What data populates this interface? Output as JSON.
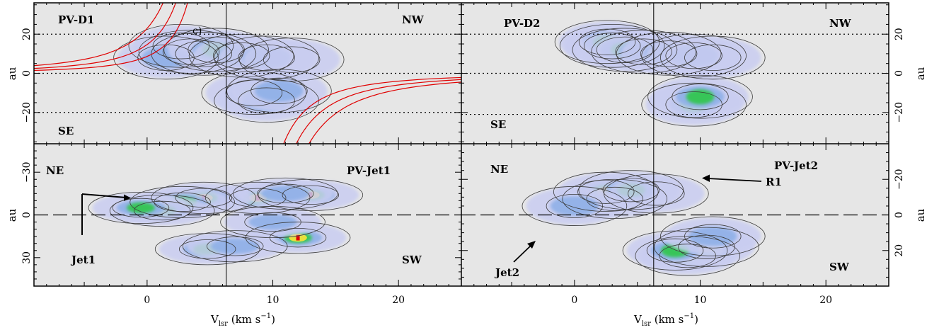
{
  "chart_data": [
    {
      "type": "heatmap",
      "panel_id": "top-left",
      "title": "PV-D1",
      "corner_labels": [
        "NW",
        "SE"
      ],
      "annotations": [
        "c)"
      ],
      "xlabel": "",
      "ylabel": "au",
      "xlim": [
        -9,
        25
      ],
      "ylim": [
        36,
        -36
      ],
      "x_ticks": [
        0,
        10,
        20
      ],
      "y_ticks": [
        -20,
        0,
        20
      ],
      "y_tick_labels": [
        "−20",
        "0",
        "20"
      ],
      "dotted_lines_y": [
        -20,
        0,
        20
      ],
      "vline_x": 6.3,
      "emission_blobs": [
        {
          "x": 2.7,
          "y": 14,
          "i": 1.0
        },
        {
          "x": 3.5,
          "y": 11,
          "i": 0.7
        },
        {
          "x": 4.5,
          "y": 10,
          "i": 0.55
        },
        {
          "x": 1.5,
          "y": 8,
          "i": 0.35
        },
        {
          "x": 5.5,
          "y": 12,
          "i": 0.45
        },
        {
          "x": 7.5,
          "y": 9,
          "i": 0.35
        },
        {
          "x": 9.5,
          "y": 8,
          "i": 0.35
        },
        {
          "x": 11.5,
          "y": 7,
          "i": 0.3
        },
        {
          "x": 8.5,
          "y": -10,
          "i": 0.45
        },
        {
          "x": 9.5,
          "y": -14,
          "i": 0.4
        },
        {
          "x": 10.5,
          "y": -9,
          "i": 0.35
        }
      ],
      "red_curves": [
        {
          "side": "lower-left",
          "offsets_x": [
            4.6,
            6.0,
            7.5
          ]
        },
        {
          "side": "upper-right",
          "offsets_x": [
            6.8,
            8.3,
            9.8
          ]
        }
      ]
    },
    {
      "type": "heatmap",
      "panel_id": "top-right",
      "title": "PV-D2",
      "corner_labels": [
        "NW",
        "SE"
      ],
      "xlabel": "",
      "ylabel": "au",
      "xlim": [
        -9,
        25
      ],
      "ylim": [
        36,
        -36
      ],
      "x_ticks": [
        0,
        10,
        20
      ],
      "y_ticks": [
        -20,
        0,
        20
      ],
      "y_tick_labels": [
        "−20",
        "0",
        "20"
      ],
      "dotted_lines_y": [
        -21,
        0,
        20
      ],
      "vline_x": 6.3,
      "emission_blobs": [
        {
          "x": 3.0,
          "y": 14,
          "i": 1.0
        },
        {
          "x": 2.6,
          "y": 16,
          "i": 0.6
        },
        {
          "x": 4.0,
          "y": 12,
          "i": 0.45
        },
        {
          "x": 5.5,
          "y": 11,
          "i": 0.4
        },
        {
          "x": 7.5,
          "y": 10,
          "i": 0.35
        },
        {
          "x": 9.5,
          "y": 9,
          "i": 0.35
        },
        {
          "x": 11,
          "y": 8,
          "i": 0.3
        },
        {
          "x": 9.5,
          "y": -16,
          "i": 0.55
        },
        {
          "x": 10,
          "y": -12,
          "i": 0.45
        }
      ]
    },
    {
      "type": "heatmap",
      "panel_id": "bottom-left",
      "title": "PV-Jet1",
      "corner_labels": [
        "NE",
        "SW"
      ],
      "annotations": [
        "Jet1"
      ],
      "xlabel": "V_lsr (km s^-1)",
      "ylabel": "au",
      "xlim": [
        -9,
        25
      ],
      "ylim": [
        -50,
        50
      ],
      "x_ticks": [
        0,
        10,
        20
      ],
      "y_ticks": [
        30,
        0,
        -30
      ],
      "y_tick_labels": [
        "30",
        "0",
        "−30"
      ],
      "dashed_line_y": 0,
      "vline_x": 6.3,
      "emission_blobs": [
        {
          "x": 13,
          "y": -14,
          "i": 1.0
        },
        {
          "x": 12,
          "y": 16,
          "i": 0.85
        },
        {
          "x": 8.8,
          "y": -12,
          "i": 0.9
        },
        {
          "x": 4.5,
          "y": -12,
          "i": 0.85
        },
        {
          "x": 2.8,
          "y": -9,
          "i": 0.55
        },
        {
          "x": 1.2,
          "y": -3,
          "i": 0.55
        },
        {
          "x": -0.5,
          "y": -5,
          "i": 0.45
        },
        {
          "x": 4.8,
          "y": 24,
          "i": 0.45
        },
        {
          "x": 7,
          "y": 22,
          "i": 0.4
        },
        {
          "x": 10,
          "y": 5,
          "i": 0.35
        },
        {
          "x": 11,
          "y": -15,
          "i": 0.4
        }
      ]
    },
    {
      "type": "heatmap",
      "panel_id": "bottom-right",
      "title": "PV-Jet2",
      "corner_labels": [
        "NE",
        "SW"
      ],
      "annotations": [
        "Jet2",
        "R1"
      ],
      "xlabel": "V_lsr (km s^-1)",
      "ylabel": "au",
      "xlim": [
        -9,
        25
      ],
      "ylim": [
        -40,
        40
      ],
      "x_ticks": [
        0,
        10,
        20
      ],
      "y_ticks": [
        20,
        0,
        -20
      ],
      "y_tick_labels": [
        "20",
        "0",
        "−20"
      ],
      "dashed_line_y": 0,
      "vline_x": 6.3,
      "emission_blobs": [
        {
          "x": 3.2,
          "y": -9,
          "i": 1.0
        },
        {
          "x": 2.5,
          "y": -13,
          "i": 0.65
        },
        {
          "x": 9,
          "y": 23,
          "i": 0.95
        },
        {
          "x": 10.5,
          "y": 18,
          "i": 0.7
        },
        {
          "x": 8,
          "y": 20,
          "i": 0.5
        },
        {
          "x": 11,
          "y": 12,
          "i": 0.4
        },
        {
          "x": 4.5,
          "y": -14,
          "i": 0.45
        },
        {
          "x": 0,
          "y": -5,
          "i": 0.35
        },
        {
          "x": 6.5,
          "y": -12,
          "i": 0.3
        }
      ]
    }
  ],
  "labels": {
    "xlabel_main": "V",
    "xlabel_sub": "lsr",
    "xlabel_units": " (km s",
    "xlabel_sup": "−1",
    "xlabel_close": ")"
  },
  "colors": {
    "background": "#e6e6e6",
    "contour": "#3c3c3c",
    "fit_curves": "#e00000",
    "emission_low": "#c9cdf1",
    "emission_mid": "#2ec84a",
    "emission_high": "#e00000"
  }
}
